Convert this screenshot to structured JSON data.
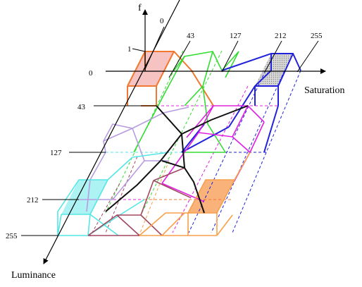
{
  "axes": {
    "vertical_label": "f",
    "horizontal_label": "Saturation",
    "depth_label": "Luminance",
    "f_ticks": [
      "1",
      "0"
    ],
    "saturation_ticks": [
      "0",
      "43",
      "127",
      "212",
      "255"
    ],
    "luminance_ticks": [
      "43",
      "127",
      "212",
      "255"
    ]
  },
  "colors": {
    "axis": "#000000",
    "orange": "#f07830",
    "green": "#33dd33",
    "blue": "#2222dd",
    "magenta": "#e020e0",
    "black_path": "#111111",
    "lavender": "#b79ce0",
    "cyan": "#55e6e6",
    "maroon": "#a04860",
    "orange_bottom": "#f7a04a",
    "fill_pink": "#f7c2c2",
    "fill_grey": "#cfcfcf",
    "fill_cyan": "#aef3f3",
    "fill_orange": "#f8b27a"
  }
}
